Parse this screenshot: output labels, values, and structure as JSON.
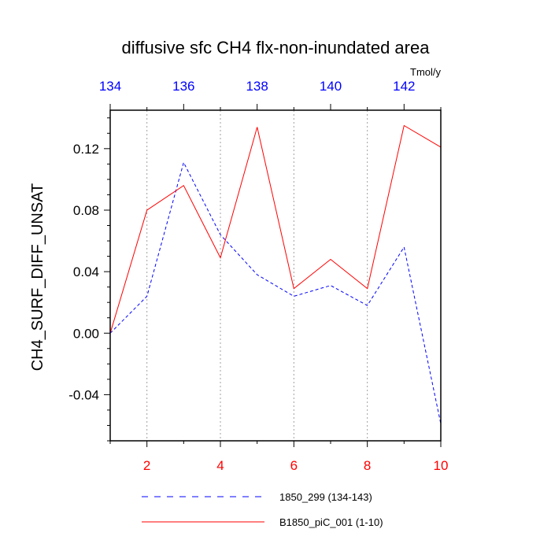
{
  "chart_data": {
    "type": "line",
    "title": "diffusive sfc CH4 flx-non-inundated area",
    "units": "Tmol/y",
    "ylabel": "CH4_SURF_DIFF_UNSAT",
    "ylim": [
      -0.07,
      0.145
    ],
    "yticks": [
      -0.04,
      0.0,
      0.04,
      0.08,
      0.12
    ],
    "ytick_labels": [
      "-0.04",
      "0.00",
      "0.04",
      "0.08",
      "0.12"
    ],
    "x_bottom": {
      "range": [
        1,
        10
      ],
      "ticks": [
        2,
        4,
        6,
        8,
        10
      ],
      "tick_labels": [
        "2",
        "4",
        "6",
        "8",
        "10"
      ],
      "color": "#ff0000"
    },
    "x_top": {
      "range": [
        134,
        143
      ],
      "ticks": [
        134,
        136,
        138,
        140,
        142
      ],
      "tick_labels": [
        "134",
        "136",
        "138",
        "140",
        "142"
      ],
      "color": "#0000ff"
    },
    "grid": "vertical dotted at major bottom ticks",
    "legend_position": "bottom",
    "series": [
      {
        "name": "1850_299 (134-143)",
        "axis": "top",
        "color": "#0000ff",
        "dash": "dashed",
        "x": [
          134,
          135,
          136,
          137,
          138,
          139,
          140,
          141,
          142,
          143
        ],
        "values": [
          0.0,
          0.024,
          0.111,
          0.064,
          0.038,
          0.024,
          0.031,
          0.018,
          0.056,
          -0.059
        ]
      },
      {
        "name": "B1850_piC_001 (1-10)",
        "axis": "bottom",
        "color": "#ff0000",
        "dash": "solid",
        "x": [
          1,
          2,
          3,
          4,
          5,
          6,
          7,
          8,
          9,
          10
        ],
        "values": [
          0.0,
          0.08,
          0.096,
          0.049,
          0.134,
          0.029,
          0.048,
          0.029,
          0.135,
          0.121
        ]
      }
    ]
  }
}
